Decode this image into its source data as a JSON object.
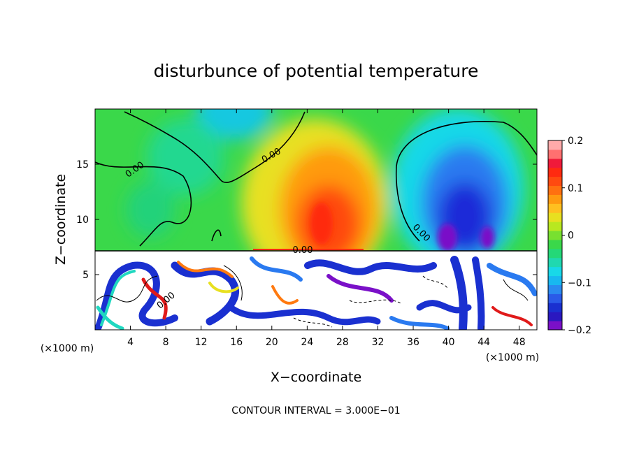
{
  "chart_data": {
    "type": "heatmap",
    "title": "disturbunce of potential temperature",
    "xlabel": "X−coordinate",
    "ylabel": "Z−coordinate",
    "x_unit_label": "(×1000 m)",
    "z_unit_label": "(×1000 m)",
    "xlim": [
      0,
      50
    ],
    "ylim": [
      0,
      20
    ],
    "x_ticks": [
      4,
      8,
      12,
      16,
      20,
      24,
      28,
      32,
      36,
      40,
      44,
      48
    ],
    "y_ticks": [
      5,
      10,
      15
    ],
    "colorbar": {
      "range": [
        -0.2,
        0.2
      ],
      "tick_values": [
        0.2,
        0.1,
        0,
        -0.1,
        -0.2
      ],
      "tick_labels": [
        "0.2",
        "0.1",
        "0",
        "−0.1",
        "−0.2"
      ]
    },
    "contour_label": "0.00",
    "contour_interval_text": "CONTOUR INTERVAL = 3.000E−01",
    "features": [
      {
        "label": "warm anomaly",
        "x": 27,
        "z": 12,
        "value": 0.14
      },
      {
        "label": "cold anomaly",
        "x": 40.5,
        "z": 11,
        "value": -0.17
      },
      {
        "label": "weak cold upper left",
        "x": 16,
        "z": 18,
        "value": -0.06
      },
      {
        "label": "cold top center",
        "x": 15.5,
        "z": 19,
        "value": -0.09
      },
      {
        "label": "mixed layer top",
        "z": 7.2
      }
    ]
  }
}
